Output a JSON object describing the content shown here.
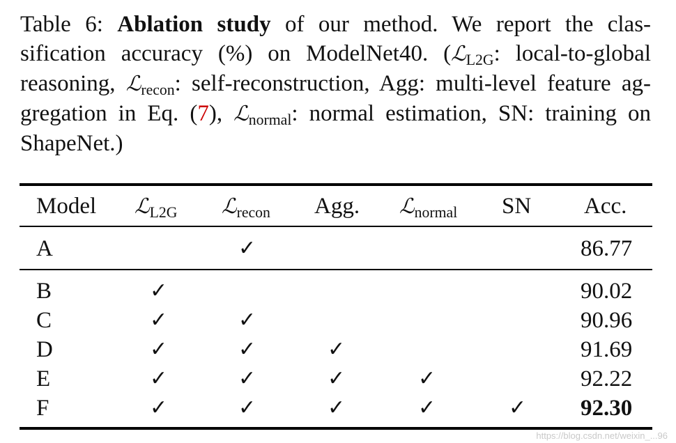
{
  "caption": {
    "table_label": "Table 6:",
    "bold_title": "Ablation study",
    "text1": "of our method.  We report the clas-sification accuracy (%) on ModelNet40. (",
    "sym": "ℒ",
    "sub_l2g": "L2G",
    "text2": ": local-to-global reasoning, ",
    "sub_recon": "recon",
    "text3": ": self-reconstruction, Agg: multi-level feature ag-gregation in Eq. (",
    "eq_ref": "7",
    "text4": "), ",
    "sub_normal": "normal",
    "text5": ": normal estimation, SN: training on ShapeNet.)"
  },
  "table": {
    "headers": {
      "model": "Model",
      "l2g_sym": "ℒ",
      "l2g_sub": "L2G",
      "recon_sym": "ℒ",
      "recon_sub": "recon",
      "agg": "Agg.",
      "normal_sym": "ℒ",
      "normal_sub": "normal",
      "sn": "SN",
      "acc": "Acc."
    },
    "check_glyph": "✓",
    "rows": [
      {
        "model": "A",
        "l2g": false,
        "recon": true,
        "agg": false,
        "normal": false,
        "sn": false,
        "acc": "86.77"
      },
      {
        "model": "B",
        "l2g": true,
        "recon": false,
        "agg": false,
        "normal": false,
        "sn": false,
        "acc": "90.02"
      },
      {
        "model": "C",
        "l2g": true,
        "recon": true,
        "agg": false,
        "normal": false,
        "sn": false,
        "acc": "90.96"
      },
      {
        "model": "D",
        "l2g": true,
        "recon": true,
        "agg": true,
        "normal": false,
        "sn": false,
        "acc": "91.69"
      },
      {
        "model": "E",
        "l2g": true,
        "recon": true,
        "agg": true,
        "normal": true,
        "sn": false,
        "acc": "92.22"
      },
      {
        "model": "F",
        "l2g": true,
        "recon": true,
        "agg": true,
        "normal": true,
        "sn": true,
        "acc": "92.30"
      }
    ],
    "best_row": "F"
  },
  "watermark": "https://blog.csdn.net/weixin_...96",
  "colors": {
    "text": "#111111",
    "eq_ref": "#cc0000",
    "rules": "#000000",
    "watermark": "#c9c9c9"
  }
}
